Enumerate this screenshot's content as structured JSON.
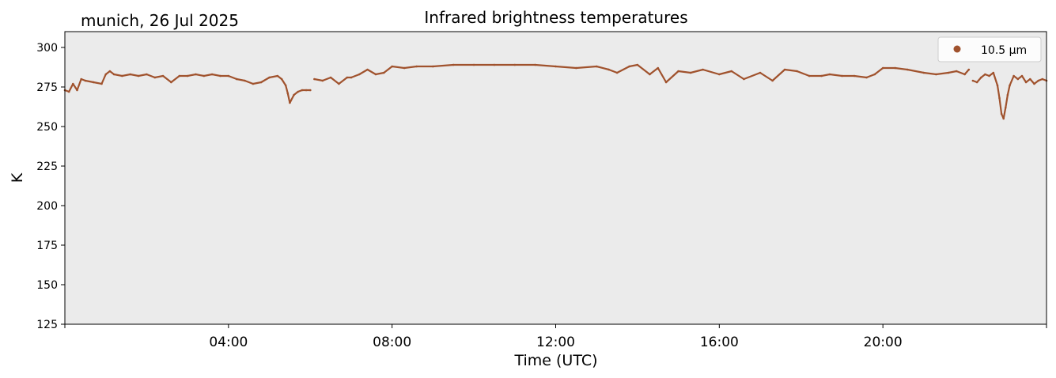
{
  "chart_data": {
    "type": "line",
    "title": "Infrared brightness temperatures",
    "subtitle": "munich, 26 Jul 2025",
    "xlabel": "Time (UTC)",
    "ylabel": "K",
    "xlim_hours": [
      0,
      24
    ],
    "ylim": [
      125,
      310
    ],
    "yticks": [
      125,
      150,
      175,
      200,
      225,
      250,
      275,
      300
    ],
    "xticks": [
      {
        "hour": 4,
        "label": "04:00"
      },
      {
        "hour": 8,
        "label": "08:00"
      },
      {
        "hour": 12,
        "label": "12:00"
      },
      {
        "hour": 16,
        "label": "16:00"
      },
      {
        "hour": 20,
        "label": "20:00"
      }
    ],
    "grid": false,
    "background": "#ebebeb",
    "legend": {
      "position": "top-right"
    },
    "series": [
      {
        "name": "10.5 µm",
        "color": "#a0522d",
        "segments": [
          {
            "hours": [
              0.0,
              0.1,
              0.2,
              0.3,
              0.4,
              0.5,
              0.7,
              0.9,
              1.0,
              1.1,
              1.2,
              1.4,
              1.6,
              1.8,
              2.0,
              2.2,
              2.4,
              2.6,
              2.8,
              3.0,
              3.2,
              3.4,
              3.6,
              3.8,
              4.0,
              4.2,
              4.4,
              4.6,
              4.8,
              5.0,
              5.2,
              5.3,
              5.4,
              5.45,
              5.5,
              5.6,
              5.7,
              5.8,
              5.9,
              6.0
            ],
            "values": [
              273,
              272,
              277,
              273,
              280,
              279,
              278,
              277,
              283,
              285,
              283,
              282,
              283,
              282,
              283,
              281,
              282,
              278,
              282,
              282,
              283,
              282,
              283,
              282,
              282,
              280,
              279,
              277,
              278,
              281,
              282,
              280,
              276,
              271,
              265,
              270,
              272,
              273,
              273,
              273
            ]
          },
          {
            "hours": [
              6.1,
              6.3,
              6.5,
              6.7,
              6.9,
              7.0,
              7.2,
              7.4,
              7.6,
              7.8,
              8.0,
              8.3,
              8.6,
              9.0,
              9.5,
              10.0,
              10.5,
              11.0,
              11.5,
              12.0,
              12.5,
              13.0,
              13.3,
              13.5,
              13.8,
              14.0,
              14.3,
              14.5,
              14.7,
              15.0,
              15.3,
              15.6,
              16.0,
              16.3,
              16.6,
              17.0,
              17.3,
              17.6,
              17.9,
              18.2,
              18.5,
              18.7,
              19.0,
              19.3,
              19.6,
              19.8,
              20.0,
              20.3,
              20.6,
              21.0,
              21.3,
              21.6,
              21.8,
              22.0,
              22.1
            ],
            "values": [
              280,
              279,
              281,
              277,
              281,
              281,
              283,
              286,
              283,
              284,
              288,
              287,
              288,
              288,
              289,
              289,
              289,
              289,
              289,
              288,
              287,
              288,
              286,
              284,
              288,
              289,
              283,
              287,
              278,
              285,
              284,
              286,
              283,
              285,
              280,
              284,
              279,
              286,
              285,
              282,
              282,
              283,
              282,
              282,
              281,
              283,
              287,
              287,
              286,
              284,
              283,
              284,
              285,
              283,
              286
            ]
          },
          {
            "hours": [
              22.2,
              22.3,
              22.4,
              22.5,
              22.6,
              22.7,
              22.8,
              22.85,
              22.9,
              22.95,
              23.0,
              23.05,
              23.1,
              23.2,
              23.3,
              23.4,
              23.5,
              23.6,
              23.7,
              23.8,
              23.9,
              24.0
            ],
            "values": [
              279,
              278,
              281,
              283,
              282,
              284,
              276,
              268,
              258,
              255,
              262,
              270,
              276,
              282,
              280,
              282,
              278,
              280,
              277,
              279,
              280,
              279
            ]
          }
        ]
      }
    ]
  }
}
